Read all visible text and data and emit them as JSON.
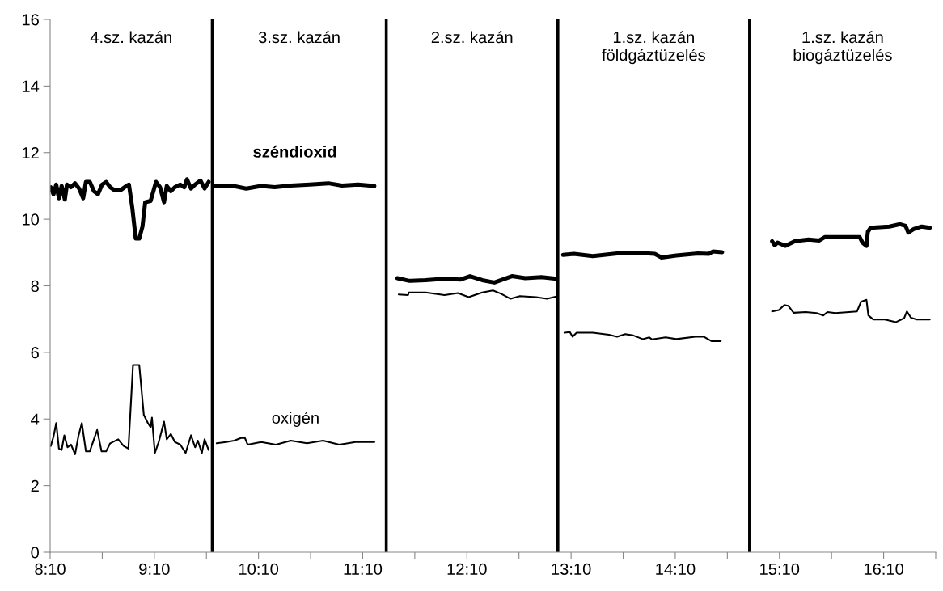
{
  "chart_data": {
    "type": "line",
    "annotations": [
      "4.sz. kazán",
      "3.sz. kazán",
      "2.sz. kazán",
      "1.sz. kazán\nföldgáztüzelés",
      "1.sz. kazán\nbiogáztüzelés"
    ],
    "series": [
      {
        "name": "széndioxid",
        "color": "#000000",
        "x": [
          8.173,
          8.199,
          8.225,
          8.251,
          8.277,
          8.308,
          8.328,
          8.367,
          8.406,
          8.445,
          8.484,
          8.51,
          8.548,
          8.587,
          8.626,
          8.665,
          8.704,
          8.743,
          8.781,
          8.846,
          8.898,
          8.923,
          8.955,
          8.988,
          9.022,
          9.053,
          9.079,
          9.131,
          9.183,
          9.222,
          9.26,
          9.286,
          9.325,
          9.364,
          9.416,
          9.454,
          9.48,
          9.519,
          9.558,
          9.61,
          9.649,
          9.688,
          9.723,
          9.752,
          9.907,
          10.049,
          10.192,
          10.321,
          10.476,
          10.657,
          10.838,
          10.968,
          11.123,
          11.279,
          11.393,
          11.499,
          11.615,
          11.77,
          11.952,
          12.107,
          12.197,
          12.314,
          12.43,
          12.599,
          12.728,
          12.883,
          13.026,
          13.04,
          13.09,
          13.194,
          13.375,
          13.608,
          13.815,
          13.97,
          14.035,
          14.177,
          14.384,
          14.488,
          14.527,
          14.617,
          14.88,
          15.096,
          15.122,
          15.148,
          15.225,
          15.316,
          15.445,
          15.549,
          15.601,
          15.756,
          15.937,
          15.963,
          16.002,
          16.015,
          16.041,
          16.222,
          16.325,
          16.377,
          16.403,
          16.455,
          16.532,
          16.61
        ],
        "values": [
          10.96,
          10.75,
          11.04,
          10.63,
          11.0,
          10.59,
          11.04,
          10.96,
          11.08,
          10.92,
          10.63,
          11.12,
          11.12,
          10.84,
          10.75,
          11.04,
          11.12,
          10.96,
          10.88,
          10.88,
          11.0,
          11.04,
          10.35,
          9.42,
          9.42,
          9.78,
          10.51,
          10.55,
          11.12,
          10.96,
          10.51,
          11.0,
          10.84,
          10.96,
          11.04,
          10.96,
          11.2,
          10.92,
          11.04,
          11.16,
          10.92,
          11.12,
          null,
          11.0,
          11.01,
          10.92,
          11.0,
          10.96,
          11.01,
          11.04,
          11.08,
          11.01,
          11.04,
          11.0,
          null,
          8.23,
          8.15,
          8.17,
          8.21,
          8.19,
          8.29,
          8.17,
          8.1,
          8.29,
          8.23,
          8.26,
          8.21,
          null,
          8.93,
          8.96,
          8.89,
          8.97,
          8.99,
          8.96,
          8.85,
          8.91,
          8.97,
          8.96,
          9.03,
          9.01,
          null,
          9.34,
          9.22,
          9.3,
          9.2,
          9.34,
          9.39,
          9.36,
          9.46,
          9.46,
          9.46,
          9.3,
          9.2,
          9.62,
          9.74,
          9.78,
          9.85,
          9.8,
          9.6,
          9.7,
          9.78,
          9.74
        ]
      },
      {
        "name": "oxigén",
        "color": "#000000",
        "x": [
          8.173,
          8.199,
          8.225,
          8.251,
          8.277,
          8.303,
          8.334,
          8.367,
          8.406,
          8.437,
          8.471,
          8.51,
          8.548,
          8.587,
          8.618,
          8.66,
          8.704,
          8.743,
          8.82,
          8.872,
          8.918,
          8.962,
          9.022,
          9.066,
          9.105,
          9.131,
          9.144,
          9.172,
          9.209,
          9.26,
          9.286,
          9.325,
          9.364,
          9.416,
          9.467,
          9.519,
          9.558,
          9.584,
          9.623,
          9.649,
          9.688,
          9.723,
          9.765,
          9.856,
          9.933,
          9.998,
          10.036,
          10.062,
          10.192,
          10.334,
          10.476,
          10.632,
          10.787,
          10.942,
          11.097,
          11.279,
          11.393,
          11.512,
          11.602,
          11.61,
          11.77,
          11.952,
          12.081,
          12.184,
          12.314,
          12.417,
          12.495,
          12.586,
          12.676,
          12.831,
          12.935,
          13.026,
          13.04,
          13.103,
          13.155,
          13.181,
          13.22,
          13.375,
          13.53,
          13.608,
          13.686,
          13.763,
          13.854,
          13.918,
          13.944,
          14.074,
          14.177,
          14.358,
          14.436,
          14.514,
          14.604,
          14.88,
          15.096,
          15.161,
          15.212,
          15.251,
          15.303,
          15.419,
          15.523,
          15.588,
          15.627,
          15.704,
          15.834,
          15.911,
          15.95,
          16.002,
          16.02,
          16.067,
          16.17,
          16.286,
          16.364,
          16.39,
          16.429,
          16.48,
          16.61
        ],
        "values": [
          3.19,
          3.47,
          3.88,
          3.11,
          3.07,
          3.51,
          3.15,
          3.23,
          2.94,
          3.47,
          3.88,
          3.03,
          3.03,
          3.39,
          3.67,
          3.03,
          3.03,
          3.27,
          3.39,
          3.19,
          3.11,
          5.62,
          5.62,
          4.12,
          3.88,
          3.75,
          4.04,
          2.98,
          3.31,
          3.92,
          3.39,
          3.55,
          3.31,
          3.23,
          2.98,
          3.51,
          3.15,
          3.35,
          2.98,
          3.39,
          3.07,
          null,
          3.27,
          3.31,
          3.35,
          3.43,
          3.43,
          3.23,
          3.31,
          3.23,
          3.35,
          3.27,
          3.35,
          3.23,
          3.31,
          3.31,
          null,
          7.74,
          7.72,
          7.8,
          7.8,
          7.72,
          7.78,
          7.66,
          7.8,
          7.86,
          7.76,
          7.61,
          7.69,
          7.66,
          7.61,
          7.68,
          null,
          6.59,
          6.61,
          6.47,
          6.59,
          6.59,
          6.53,
          6.47,
          6.55,
          6.51,
          6.4,
          6.45,
          6.39,
          6.45,
          6.4,
          6.47,
          6.48,
          6.34,
          6.34,
          null,
          7.23,
          7.27,
          7.42,
          7.4,
          7.19,
          7.21,
          7.18,
          7.11,
          7.21,
          7.18,
          7.21,
          7.23,
          7.52,
          7.58,
          7.11,
          6.99,
          6.99,
          6.91,
          7.03,
          7.23,
          7.04,
          6.99,
          6.99
        ]
      }
    ],
    "xlim": [
      8.1667,
      16.6667
    ],
    "xticks": [
      {
        "value": 8.1667,
        "label": "8:10"
      },
      {
        "value": 8.6667,
        "label": null
      },
      {
        "value": 9.1667,
        "label": "9:10"
      },
      {
        "value": 9.6667,
        "label": null
      },
      {
        "value": 10.1667,
        "label": "10:10"
      },
      {
        "value": 10.6667,
        "label": null
      },
      {
        "value": 11.1667,
        "label": "11:10"
      },
      {
        "value": 11.6667,
        "label": null
      },
      {
        "value": 12.1667,
        "label": "12:10"
      },
      {
        "value": 12.6667,
        "label": null
      },
      {
        "value": 13.1667,
        "label": "13:10"
      },
      {
        "value": 13.6667,
        "label": null
      },
      {
        "value": 14.1667,
        "label": "14:10"
      },
      {
        "value": 14.6667,
        "label": null
      },
      {
        "value": 15.1667,
        "label": "15:10"
      },
      {
        "value": 15.6667,
        "label": null
      },
      {
        "value": 16.1667,
        "label": "16:10"
      },
      {
        "value": 16.6667,
        "label": null
      }
    ],
    "ylim": [
      0,
      16
    ],
    "yticks": [
      0,
      2,
      4,
      6,
      8,
      10,
      12,
      14,
      16
    ],
    "ref_lines": [
      {
        "axis": "x",
        "value": 9.723,
        "color": "#000000"
      },
      {
        "axis": "x",
        "value": 11.393,
        "color": "#000000"
      },
      {
        "axis": "x",
        "value": 13.04,
        "color": "#000000"
      },
      {
        "axis": "x",
        "value": 14.88,
        "color": "#000000"
      }
    ],
    "grid": false,
    "legend": false,
    "marker": "none",
    "line_style": "solid"
  }
}
